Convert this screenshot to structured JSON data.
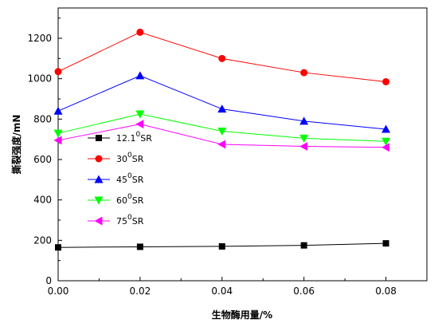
{
  "chart_data": {
    "type": "line",
    "title": "",
    "xlabel": "生物酶用量/%",
    "ylabel": "撕裂强度/mN",
    "xlim": [
      0,
      0.09
    ],
    "ylim": [
      0,
      1350
    ],
    "grid": false,
    "legend_position": "center-left",
    "x": [
      0.0,
      0.02,
      0.04,
      0.06,
      0.08
    ],
    "x_ticks": [
      0.0,
      0.02,
      0.04,
      0.06,
      0.08
    ],
    "x_tick_labels": [
      "0.00",
      "0.02",
      "0.04",
      "0.06",
      "0.08"
    ],
    "y_ticks": [
      0,
      200,
      400,
      600,
      800,
      1000,
      1200
    ],
    "y_tick_labels": [
      "0",
      "200",
      "400",
      "600",
      "800",
      "1000",
      "1200"
    ],
    "series": [
      {
        "name": "12.1⁰SR",
        "legend_main": "12.1",
        "legend_sup": "0",
        "legend_unit": "SR",
        "color": "#000000",
        "marker": "square",
        "values": [
          165,
          168,
          170,
          175,
          185
        ]
      },
      {
        "name": "30⁰SR",
        "legend_main": "30",
        "legend_sup": "0",
        "legend_unit": "SR",
        "color": "#ff0000",
        "marker": "circle",
        "values": [
          1035,
          1230,
          1100,
          1030,
          985
        ]
      },
      {
        "name": "45⁰SR",
        "legend_main": "45",
        "legend_sup": "0",
        "legend_unit": "SR",
        "color": "#0000ff",
        "marker": "triangle-up",
        "values": [
          840,
          1015,
          850,
          790,
          750
        ]
      },
      {
        "name": "60⁰SR",
        "legend_main": "60",
        "legend_sup": "0",
        "legend_unit": "SR",
        "color": "#00ff00",
        "marker": "triangle-down",
        "values": [
          730,
          825,
          740,
          705,
          690
        ]
      },
      {
        "name": "75⁰SR",
        "legend_main": "75",
        "legend_sup": "0",
        "legend_unit": "SR",
        "color": "#ff00ff",
        "marker": "triangle-left",
        "values": [
          695,
          775,
          675,
          665,
          660
        ]
      }
    ]
  }
}
